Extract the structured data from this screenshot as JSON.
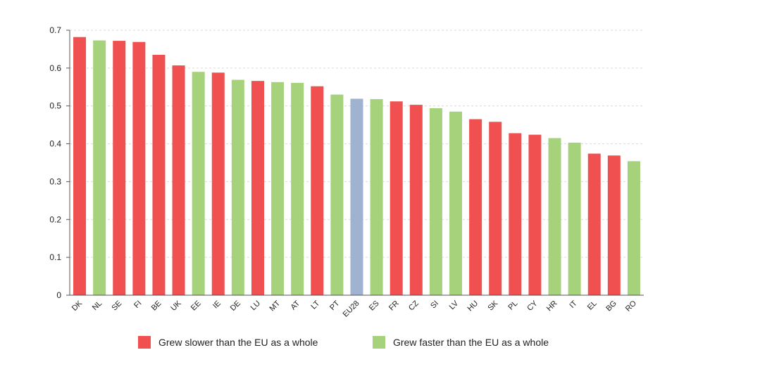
{
  "chart_data": {
    "type": "bar",
    "categories": [
      "DK",
      "NL",
      "SE",
      "FI",
      "BE",
      "UK",
      "EE",
      "IE",
      "DE",
      "LU",
      "MT",
      "AT",
      "LT",
      "PT",
      "EU28",
      "ES",
      "FR",
      "CZ",
      "SI",
      "LV",
      "HU",
      "SK",
      "PL",
      "CY",
      "HR",
      "IT",
      "EL",
      "BG",
      "RO"
    ],
    "values": [
      0.682,
      0.673,
      0.672,
      0.669,
      0.635,
      0.607,
      0.59,
      0.588,
      0.569,
      0.566,
      0.563,
      0.561,
      0.552,
      0.53,
      0.519,
      0.518,
      0.512,
      0.503,
      0.494,
      0.485,
      0.465,
      0.458,
      0.428,
      0.424,
      0.415,
      0.403,
      0.374,
      0.369,
      0.354
    ],
    "groups": [
      "slower",
      "faster",
      "slower",
      "slower",
      "slower",
      "slower",
      "faster",
      "slower",
      "faster",
      "slower",
      "faster",
      "faster",
      "slower",
      "faster",
      "eu",
      "faster",
      "slower",
      "slower",
      "faster",
      "faster",
      "slower",
      "slower",
      "slower",
      "slower",
      "faster",
      "faster",
      "slower",
      "slower",
      "faster"
    ],
    "ylim": [
      0,
      0.7
    ],
    "yticks": [
      "0",
      "0.1",
      "0.2",
      "0.3",
      "0.4",
      "0.5",
      "0.6",
      "0.7"
    ],
    "grid": true,
    "legend_position": "bottom",
    "colors": {
      "slower": "#f05050",
      "faster": "#a6d27b",
      "eu": "#9fb2cf"
    },
    "legend": [
      {
        "key": "slower",
        "label": "Grew slower than the EU as a whole"
      },
      {
        "key": "faster",
        "label": "Grew faster than the EU as a whole"
      }
    ]
  }
}
